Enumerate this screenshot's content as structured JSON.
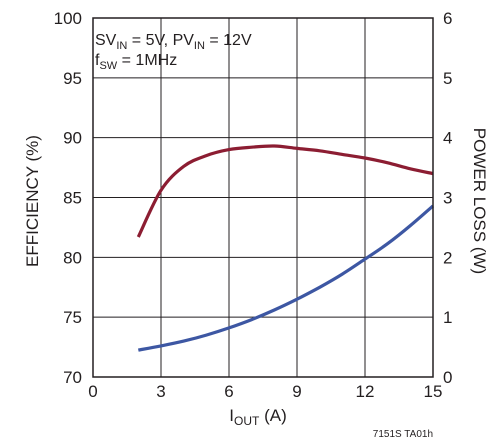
{
  "chart_data": {
    "type": "line",
    "title": "",
    "annotations": {
      "line1": {
        "a_main": "SV",
        "a_sub": "IN",
        "a_rest": " = 5V, PV",
        "b_sub": "IN",
        "b_rest": " = 12V"
      },
      "line2": {
        "main": "f",
        "sub": "SW",
        "rest": " = 1MHz"
      }
    },
    "xlabel": {
      "main": "I",
      "sub": "OUT",
      "rest": " (A)"
    },
    "ylabel_left": "EFFICIENCY (%)",
    "ylabel_right": "POWER LOSS (W)",
    "xlim": [
      0,
      15
    ],
    "ylim_left": [
      70,
      100
    ],
    "ylim_right": [
      0,
      6
    ],
    "x_ticks": [
      0,
      3,
      6,
      9,
      12,
      15
    ],
    "y_left_ticks": [
      70,
      75,
      80,
      85,
      90,
      95,
      100
    ],
    "y_right_ticks": [
      0,
      1,
      2,
      3,
      4,
      5,
      6
    ],
    "grid": true,
    "series": [
      {
        "axis": "left",
        "color": "#8c1d32",
        "x": [
          2,
          3,
          4,
          5,
          6,
          7,
          8,
          9,
          10,
          11,
          12,
          13,
          14,
          15
        ],
        "values": [
          81.7,
          85.6,
          87.6,
          88.5,
          89.0,
          89.2,
          89.3,
          89.1,
          88.9,
          88.6,
          88.3,
          87.9,
          87.4,
          87.0
        ]
      },
      {
        "axis": "right",
        "color": "#3d57a3",
        "x": [
          2,
          3,
          4,
          5,
          6,
          7,
          8,
          9,
          10,
          11,
          12,
          13,
          14,
          15
        ],
        "values": [
          0.45,
          0.52,
          0.6,
          0.7,
          0.82,
          0.96,
          1.12,
          1.3,
          1.5,
          1.72,
          1.97,
          2.23,
          2.53,
          2.86
        ]
      }
    ],
    "footer": "7151S TA01h"
  }
}
